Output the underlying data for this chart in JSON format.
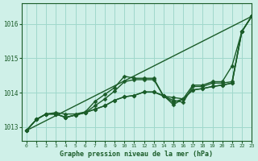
{
  "title": "Graphe pression niveau de la mer (hPa)",
  "background_color": "#cff0e8",
  "grid_color": "#a0d8cc",
  "line_color": "#1a5c28",
  "xlim": [
    -0.5,
    23
  ],
  "ylim": [
    1012.6,
    1016.6
  ],
  "yticks": [
    1013,
    1014,
    1015,
    1016
  ],
  "xticks": [
    0,
    1,
    2,
    3,
    4,
    5,
    6,
    7,
    8,
    9,
    10,
    11,
    12,
    13,
    14,
    15,
    16,
    17,
    18,
    19,
    20,
    21,
    22,
    23
  ],
  "series_no_marker": [
    [
      1012.9,
      1013.22,
      1013.38,
      1013.42,
      1013.38,
      1013.38,
      1013.44,
      1013.75,
      1013.95,
      1014.15,
      1014.48,
      1014.42,
      1014.42,
      1014.42,
      1013.9,
      1013.86,
      1013.82,
      1014.22,
      1014.22,
      1014.32,
      1014.32,
      1014.78,
      1015.78,
      1016.22
    ]
  ],
  "series_with_markers": [
    [
      1012.9,
      1013.22,
      1013.38,
      1013.38,
      1013.28,
      1013.35,
      1013.42,
      1013.62,
      1013.82,
      1014.05,
      1014.32,
      1014.38,
      1014.38,
      1014.38,
      1013.9,
      1013.78,
      1013.72,
      1014.18,
      1014.18,
      1014.28,
      1014.28,
      1014.32,
      1015.78,
      1016.22
    ],
    [
      1012.9,
      1013.22,
      1013.38,
      1013.38,
      1013.28,
      1013.35,
      1013.42,
      1013.52,
      1013.62,
      1013.78,
      1013.88,
      1013.92,
      1014.02,
      1014.02,
      1013.9,
      1013.72,
      1013.82,
      1014.08,
      1014.12,
      1014.18,
      1014.22,
      1014.28,
      1015.78,
      1016.22
    ],
    [
      1012.9,
      1013.22,
      1013.38,
      1013.38,
      1013.28,
      1013.35,
      1013.42,
      1013.52,
      1013.62,
      1013.78,
      1013.88,
      1013.92,
      1014.02,
      1014.02,
      1013.92,
      1013.65,
      1013.82,
      1014.08,
      1014.12,
      1014.18,
      1014.22,
      1014.28,
      1015.78,
      1016.22
    ]
  ],
  "straight_line": [
    [
      0,
      1012.9
    ],
    [
      23,
      1016.22
    ]
  ],
  "marker": "D",
  "markersize": 2.5,
  "linewidth": 1.0
}
